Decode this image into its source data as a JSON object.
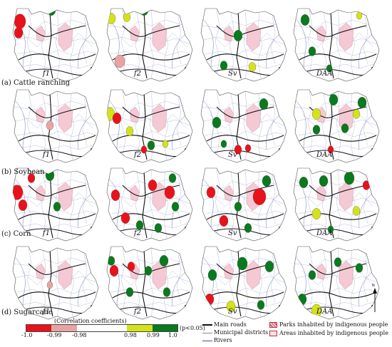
{
  "rows": [
    {
      "label": "(a) Cattle ranching"
    },
    {
      "label": "(b) Soybean"
    },
    {
      "label": "(c) Corn"
    },
    {
      "label": "(d) Sugarcane"
    }
  ],
  "panel_labels": [
    "f1",
    "f2",
    "Sv",
    "DAA"
  ],
  "legend": {
    "title": "(Correlation coefficients)",
    "significance": "(p<0.05)",
    "ticks": [
      "-1.0",
      "-0.99",
      "-0.98",
      "0.98",
      "0.99",
      "1.0"
    ],
    "colors": [
      "#e8121b",
      "#e9a3a3",
      "#ffffff",
      "#d4e21a",
      "#0a7a1e"
    ]
  },
  "map_key": {
    "main_roads": "Main roads",
    "municipal_districts": "Municipal districts",
    "rivers": "Rivers",
    "parks": "Parks inhabited by indigenous people",
    "areas": "Areas inhabited by indigenous people"
  },
  "north_arrow": "N"
}
